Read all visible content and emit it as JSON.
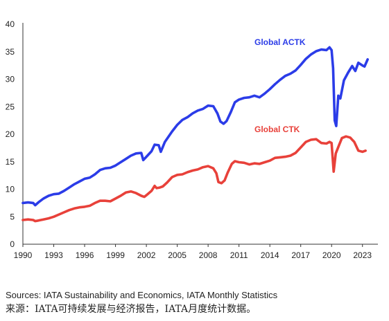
{
  "chart_data": {
    "type": "line",
    "title": "",
    "xlabel": "",
    "ylabel": "",
    "xlim": [
      1990,
      2024.5
    ],
    "ylim": [
      0,
      40
    ],
    "grid": false,
    "legend": "inline labels at line ends",
    "x_ticks": [
      "1990",
      "1993",
      "1996",
      "1999",
      "2002",
      "2005",
      "2008",
      "2011",
      "2014",
      "2017",
      "2020",
      "2023"
    ],
    "y_ticks": [
      "0",
      "5",
      "10",
      "15",
      "20",
      "25",
      "30",
      "35",
      "40"
    ],
    "series": [
      {
        "name": "Global ACTK",
        "color": "#2b3ce8",
        "points": [
          [
            1990.0,
            7.5
          ],
          [
            1990.5,
            7.6
          ],
          [
            1991.0,
            7.5
          ],
          [
            1991.2,
            7.1
          ],
          [
            1991.5,
            7.6
          ],
          [
            1992.0,
            8.3
          ],
          [
            1992.5,
            8.8
          ],
          [
            1993.0,
            9.1
          ],
          [
            1993.5,
            9.2
          ],
          [
            1994.0,
            9.7
          ],
          [
            1994.5,
            10.3
          ],
          [
            1995.0,
            10.9
          ],
          [
            1995.5,
            11.4
          ],
          [
            1996.0,
            11.9
          ],
          [
            1996.5,
            12.1
          ],
          [
            1997.0,
            12.7
          ],
          [
            1997.5,
            13.5
          ],
          [
            1998.0,
            13.8
          ],
          [
            1998.5,
            13.9
          ],
          [
            1999.0,
            14.3
          ],
          [
            1999.5,
            14.9
          ],
          [
            2000.0,
            15.5
          ],
          [
            2000.5,
            16.1
          ],
          [
            2001.0,
            16.5
          ],
          [
            2001.5,
            16.6
          ],
          [
            2001.7,
            15.3
          ],
          [
            2002.0,
            15.9
          ],
          [
            2002.5,
            16.9
          ],
          [
            2002.8,
            18.1
          ],
          [
            2003.2,
            18.0
          ],
          [
            2003.4,
            16.8
          ],
          [
            2003.8,
            18.6
          ],
          [
            2004.5,
            20.5
          ],
          [
            2005.0,
            21.7
          ],
          [
            2005.5,
            22.6
          ],
          [
            2006.0,
            23.1
          ],
          [
            2006.5,
            23.8
          ],
          [
            2007.0,
            24.3
          ],
          [
            2007.5,
            24.6
          ],
          [
            2008.0,
            25.2
          ],
          [
            2008.5,
            25.1
          ],
          [
            2008.9,
            23.8
          ],
          [
            2009.2,
            22.3
          ],
          [
            2009.5,
            21.9
          ],
          [
            2009.8,
            22.4
          ],
          [
            2010.2,
            24.0
          ],
          [
            2010.6,
            25.8
          ],
          [
            2011.0,
            26.3
          ],
          [
            2011.5,
            26.6
          ],
          [
            2012.0,
            26.7
          ],
          [
            2012.5,
            27.0
          ],
          [
            2013.0,
            26.7
          ],
          [
            2013.5,
            27.4
          ],
          [
            2014.0,
            28.2
          ],
          [
            2014.5,
            29.1
          ],
          [
            2015.0,
            29.9
          ],
          [
            2015.5,
            30.6
          ],
          [
            2016.0,
            31.0
          ],
          [
            2016.5,
            31.6
          ],
          [
            2017.0,
            32.6
          ],
          [
            2017.5,
            33.7
          ],
          [
            2018.0,
            34.5
          ],
          [
            2018.5,
            35.1
          ],
          [
            2019.0,
            35.4
          ],
          [
            2019.5,
            35.3
          ],
          [
            2019.8,
            35.8
          ],
          [
            2020.0,
            35.3
          ],
          [
            2020.15,
            32.0
          ],
          [
            2020.3,
            22.5
          ],
          [
            2020.45,
            21.5
          ],
          [
            2020.65,
            27.0
          ],
          [
            2020.85,
            26.5
          ],
          [
            2021.2,
            29.8
          ],
          [
            2021.6,
            31.2
          ],
          [
            2022.0,
            32.4
          ],
          [
            2022.3,
            31.5
          ],
          [
            2022.6,
            33.0
          ],
          [
            2023.0,
            32.5
          ],
          [
            2023.2,
            32.3
          ],
          [
            2023.5,
            33.6
          ]
        ]
      },
      {
        "name": "Global CTK",
        "color": "#e8413a",
        "points": [
          [
            1990.0,
            4.4
          ],
          [
            1990.5,
            4.5
          ],
          [
            1991.0,
            4.4
          ],
          [
            1991.2,
            4.2
          ],
          [
            1991.5,
            4.3
          ],
          [
            1992.0,
            4.5
          ],
          [
            1992.5,
            4.7
          ],
          [
            1993.0,
            5.0
          ],
          [
            1993.5,
            5.4
          ],
          [
            1994.0,
            5.8
          ],
          [
            1994.5,
            6.2
          ],
          [
            1995.0,
            6.5
          ],
          [
            1995.5,
            6.7
          ],
          [
            1996.0,
            6.8
          ],
          [
            1996.5,
            7.0
          ],
          [
            1997.0,
            7.5
          ],
          [
            1997.5,
            7.9
          ],
          [
            1998.0,
            7.9
          ],
          [
            1998.5,
            7.8
          ],
          [
            1999.0,
            8.3
          ],
          [
            1999.5,
            8.8
          ],
          [
            2000.0,
            9.4
          ],
          [
            2000.5,
            9.6
          ],
          [
            2001.0,
            9.3
          ],
          [
            2001.5,
            8.8
          ],
          [
            2001.8,
            8.6
          ],
          [
            2002.0,
            8.9
          ],
          [
            2002.5,
            9.7
          ],
          [
            2002.8,
            10.6
          ],
          [
            2003.0,
            10.2
          ],
          [
            2003.3,
            10.3
          ],
          [
            2003.6,
            10.5
          ],
          [
            2004.0,
            11.2
          ],
          [
            2004.5,
            12.2
          ],
          [
            2005.0,
            12.6
          ],
          [
            2005.5,
            12.7
          ],
          [
            2006.0,
            13.1
          ],
          [
            2006.5,
            13.4
          ],
          [
            2007.0,
            13.6
          ],
          [
            2007.5,
            14.0
          ],
          [
            2008.0,
            14.2
          ],
          [
            2008.5,
            13.8
          ],
          [
            2008.8,
            12.9
          ],
          [
            2009.0,
            11.3
          ],
          [
            2009.3,
            11.1
          ],
          [
            2009.6,
            11.6
          ],
          [
            2009.9,
            13.0
          ],
          [
            2010.3,
            14.6
          ],
          [
            2010.6,
            15.1
          ],
          [
            2011.0,
            14.9
          ],
          [
            2011.5,
            14.8
          ],
          [
            2012.0,
            14.5
          ],
          [
            2012.5,
            14.7
          ],
          [
            2013.0,
            14.6
          ],
          [
            2013.5,
            14.9
          ],
          [
            2014.0,
            15.2
          ],
          [
            2014.5,
            15.7
          ],
          [
            2015.0,
            15.8
          ],
          [
            2015.5,
            15.9
          ],
          [
            2016.0,
            16.1
          ],
          [
            2016.5,
            16.6
          ],
          [
            2017.0,
            17.6
          ],
          [
            2017.5,
            18.6
          ],
          [
            2018.0,
            19.0
          ],
          [
            2018.5,
            19.1
          ],
          [
            2019.0,
            18.4
          ],
          [
            2019.5,
            18.3
          ],
          [
            2019.8,
            18.6
          ],
          [
            2020.0,
            18.4
          ],
          [
            2020.2,
            13.2
          ],
          [
            2020.4,
            16.5
          ],
          [
            2020.7,
            17.9
          ],
          [
            2021.0,
            19.3
          ],
          [
            2021.4,
            19.6
          ],
          [
            2021.8,
            19.4
          ],
          [
            2022.2,
            18.6
          ],
          [
            2022.6,
            17.0
          ],
          [
            2023.0,
            16.8
          ],
          [
            2023.3,
            17.0
          ]
        ]
      }
    ]
  },
  "source_note": "Sources: IATA Sustainability and Economics, IATA Monthly Statistics",
  "source_note_zh": "来源：IATA可持续发展与经济报告，IATA月度统计数据。"
}
